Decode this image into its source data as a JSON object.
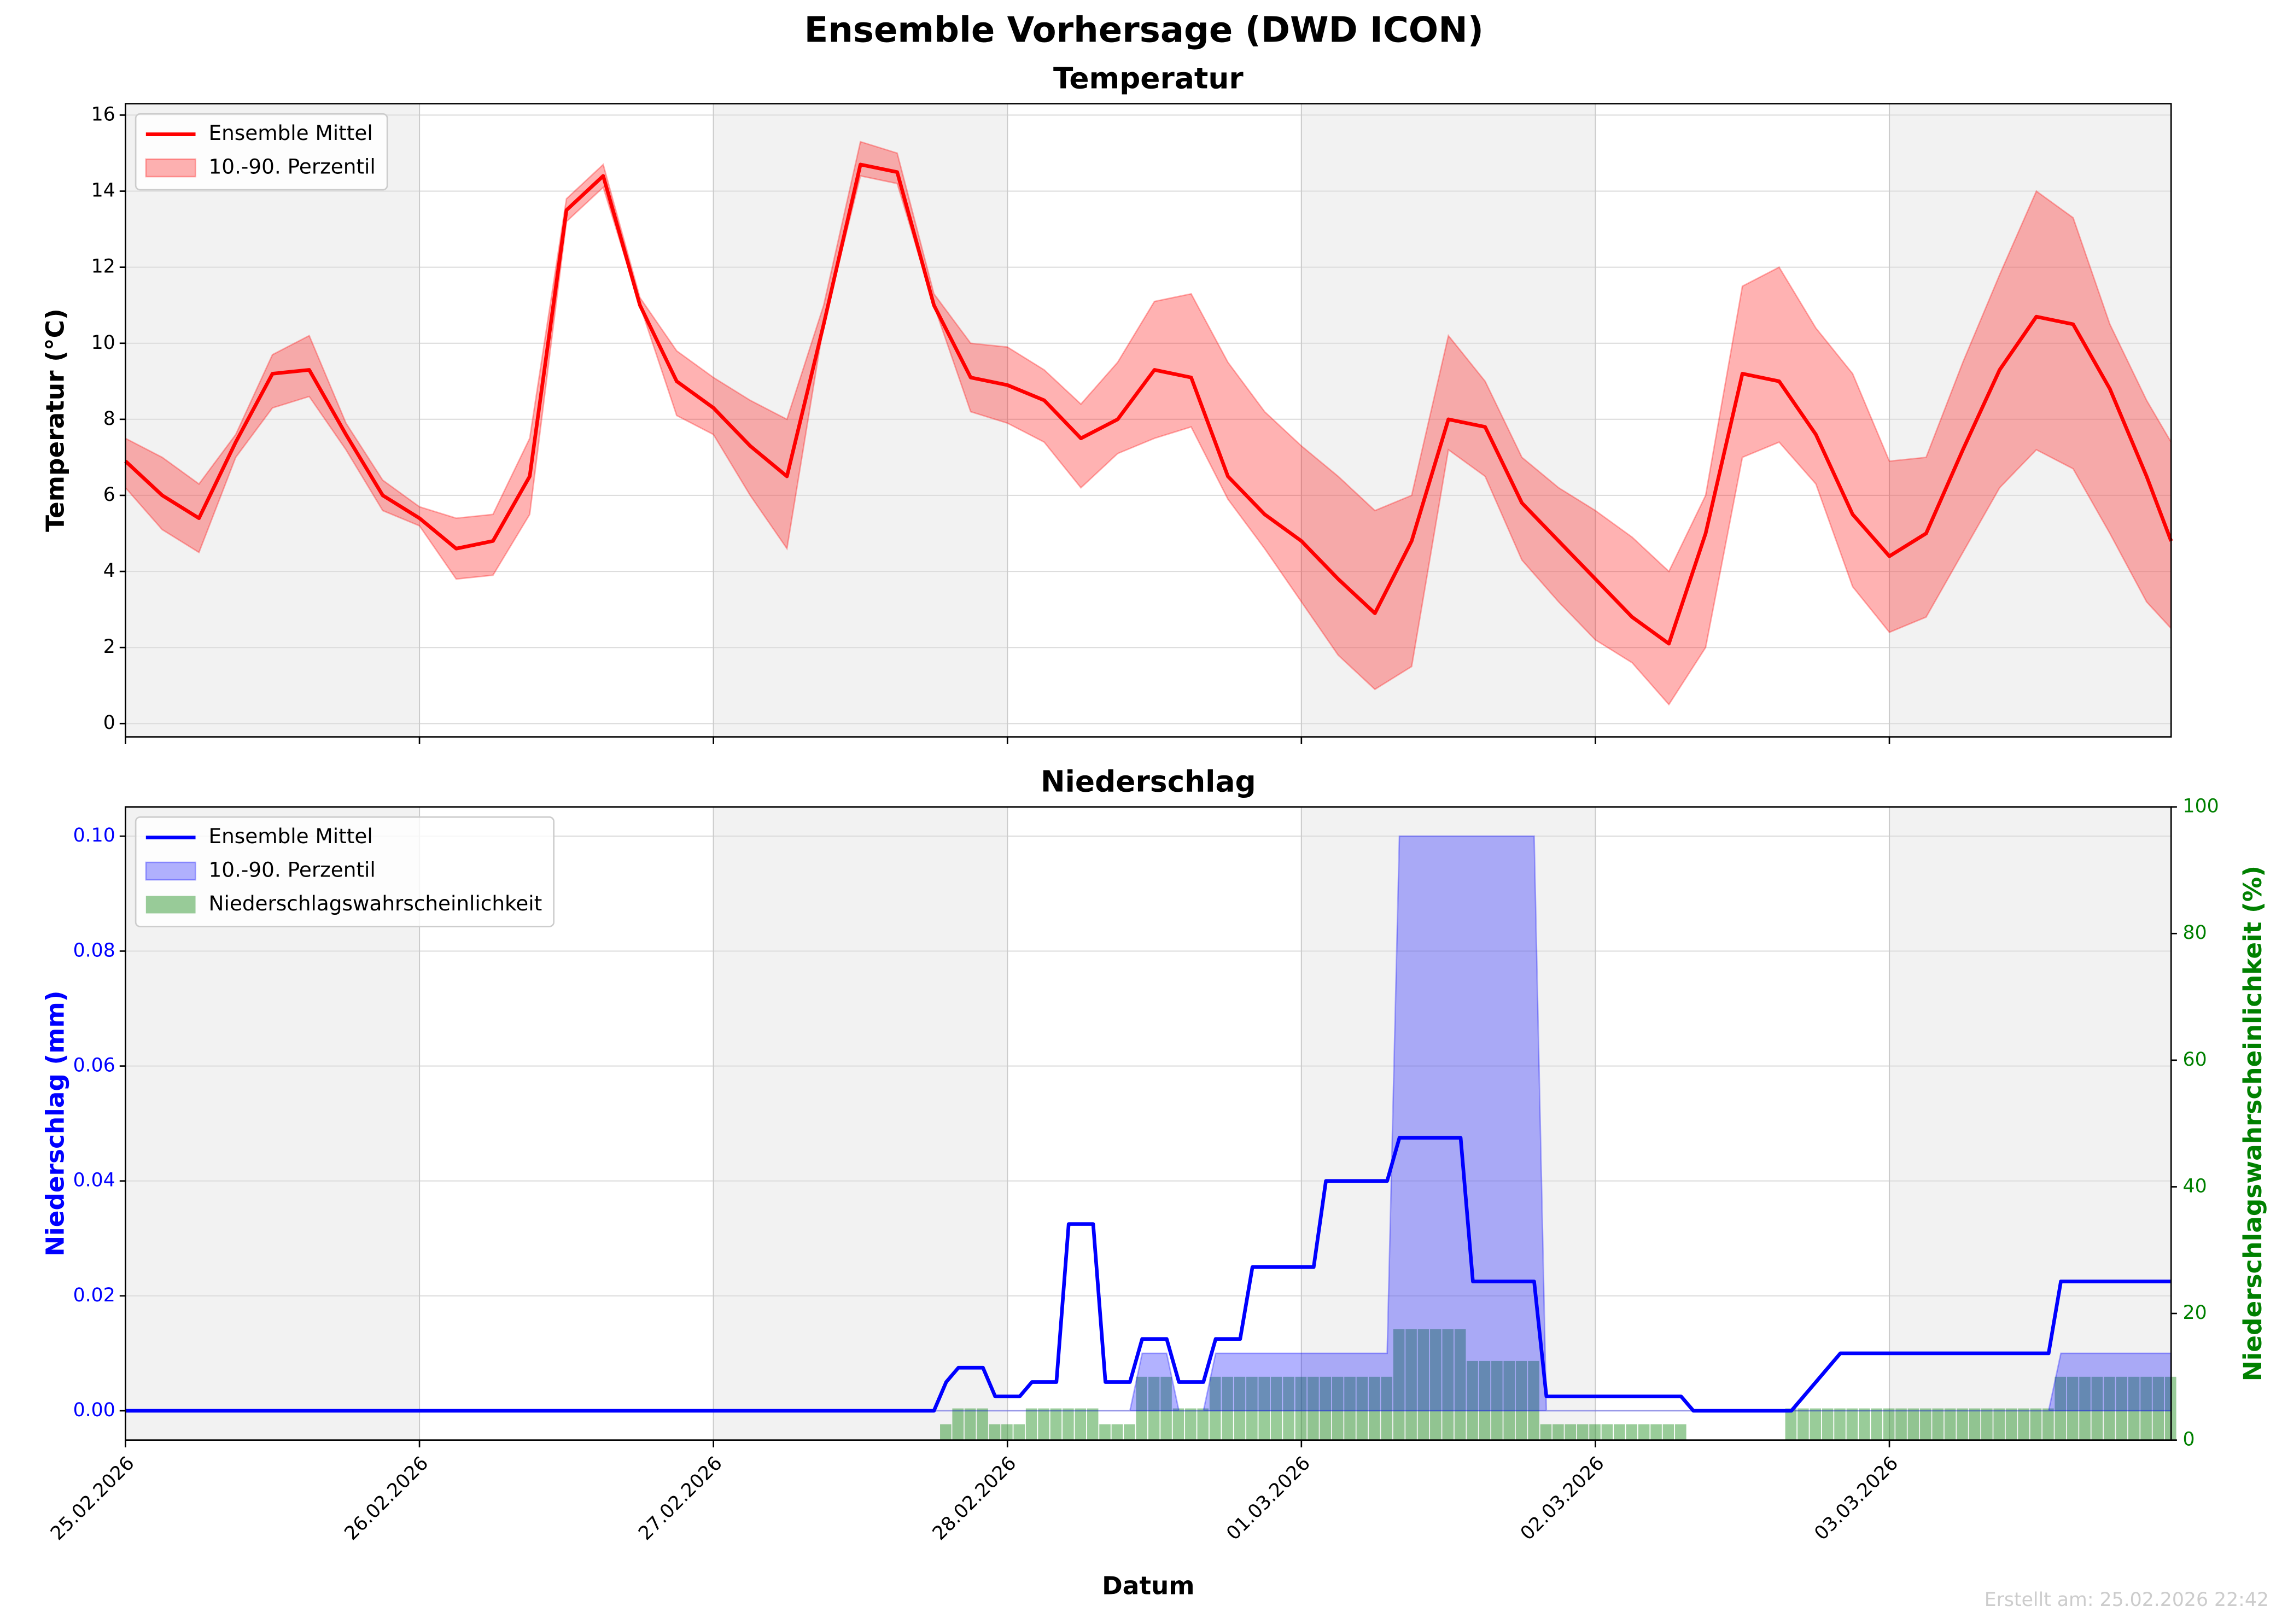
{
  "title": "Ensemble Vorhersage (DWD ICON)",
  "footnote": "Erstellt am: 25.02.2026 22:42",
  "chart_data": [
    {
      "type": "line",
      "title": "Temperatur",
      "ylabel": "Temperatur (°C)",
      "xlim": [
        0,
        167
      ],
      "ylim": [
        -0.35,
        16.3
      ],
      "yticks": [
        0,
        2,
        4,
        6,
        8,
        10,
        12,
        14,
        16
      ],
      "grid": true,
      "legend": "upper left",
      "x": [
        0,
        3,
        6,
        9,
        12,
        15,
        18,
        21,
        24,
        27,
        30,
        33,
        36,
        39,
        42,
        45,
        48,
        51,
        54,
        57,
        60,
        63,
        66,
        69,
        72,
        75,
        78,
        81,
        84,
        87,
        90,
        93,
        96,
        99,
        102,
        105,
        108,
        111,
        114,
        117,
        120,
        123,
        126,
        129,
        132,
        135,
        138,
        141,
        144,
        147,
        150,
        153,
        156,
        159,
        162,
        165,
        167
      ],
      "series": [
        {
          "name": "Ensemble Mittel",
          "color": "#ff0000",
          "values": [
            6.9,
            6.0,
            5.4,
            7.4,
            9.2,
            9.3,
            7.6,
            6.0,
            5.4,
            4.6,
            4.8,
            6.5,
            13.5,
            14.4,
            11.0,
            9.0,
            8.3,
            7.3,
            6.5,
            10.5,
            14.7,
            14.5,
            11.0,
            9.1,
            8.9,
            8.5,
            7.5,
            8.0,
            9.3,
            9.1,
            6.5,
            5.5,
            4.8,
            3.8,
            2.9,
            4.8,
            8.0,
            7.8,
            5.8,
            4.8,
            3.8,
            2.8,
            2.1,
            5.0,
            9.2,
            9.0,
            7.6,
            5.5,
            4.4,
            5.0,
            7.2,
            9.3,
            10.7,
            10.5,
            8.8,
            6.5,
            4.8
          ]
        }
      ],
      "band": {
        "name": "10.-90. Perzentil",
        "color": "#ff0000",
        "lower": [
          6.2,
          5.1,
          4.5,
          7.0,
          8.3,
          8.6,
          7.2,
          5.6,
          5.2,
          3.8,
          3.9,
          5.5,
          13.2,
          14.1,
          11.0,
          8.1,
          7.6,
          6.0,
          4.6,
          10.5,
          14.4,
          14.2,
          11.0,
          8.2,
          7.9,
          7.4,
          6.2,
          7.1,
          7.5,
          7.8,
          5.9,
          4.6,
          3.2,
          1.8,
          0.9,
          1.5,
          7.2,
          6.5,
          4.3,
          3.2,
          2.2,
          1.6,
          0.5,
          2.0,
          7.0,
          7.4,
          6.3,
          3.6,
          2.4,
          2.8,
          4.5,
          6.2,
          7.2,
          6.7,
          5.0,
          3.2,
          2.5
        ],
        "upper": [
          7.5,
          7.0,
          6.3,
          7.6,
          9.7,
          10.2,
          7.9,
          6.4,
          5.7,
          5.4,
          5.5,
          7.5,
          13.8,
          14.7,
          11.2,
          9.8,
          9.1,
          8.5,
          8.0,
          11.0,
          15.3,
          15.0,
          11.3,
          10.0,
          9.9,
          9.3,
          8.4,
          9.5,
          11.1,
          11.3,
          9.5,
          8.2,
          7.3,
          6.5,
          5.6,
          6.0,
          10.2,
          9.0,
          7.0,
          6.2,
          5.6,
          4.9,
          4.0,
          6.0,
          11.5,
          12.0,
          10.4,
          9.2,
          6.9,
          7.0,
          9.5,
          11.8,
          14.0,
          13.3,
          10.5,
          8.5,
          7.4
        ]
      }
    },
    {
      "type": "line",
      "title": "Niederschlag",
      "ylabel": "Niederschlag (mm)",
      "y2label": "Niederschlagswahrscheinlichkeit (%)",
      "xlabel": "Datum",
      "xlim": [
        0,
        167
      ],
      "xticks": [
        {
          "value": 0,
          "label": "25.02.2026"
        },
        {
          "value": 24,
          "label": "26.02.2026"
        },
        {
          "value": 48,
          "label": "27.02.2026"
        },
        {
          "value": 72,
          "label": "28.02.2026"
        },
        {
          "value": 96,
          "label": "01.03.2026"
        },
        {
          "value": 120,
          "label": "02.03.2026"
        },
        {
          "value": 144,
          "label": "03.03.2026"
        }
      ],
      "ylim": [
        -0.0051,
        0.1051
      ],
      "yticks": [
        {
          "value": 0,
          "label": "0.00"
        },
        {
          "value": 0.02,
          "label": "0.02"
        },
        {
          "value": 0.04,
          "label": "0.04"
        },
        {
          "value": 0.06,
          "label": "0.06"
        },
        {
          "value": 0.08,
          "label": "0.08"
        },
        {
          "value": 0.1,
          "label": "0.10"
        }
      ],
      "y2lim": [
        0,
        100
      ],
      "y2ticks": [
        0,
        20,
        40,
        60,
        80,
        100
      ],
      "grid": true,
      "legend": "upper left",
      "ycolor": "#0000ff",
      "y2color": "#008000",
      "x": [
        0,
        66,
        67,
        68,
        70,
        71,
        73,
        74,
        76,
        77,
        79,
        80,
        82,
        83,
        85,
        86,
        88,
        89,
        91,
        92,
        97,
        98,
        103,
        104,
        109,
        110,
        115,
        116,
        127,
        128,
        136,
        140,
        157,
        158,
        167
      ],
      "series": [
        {
          "name": "Ensemble Mittel",
          "color": "#0000ff",
          "values": [
            0,
            0,
            0.005,
            0.0075,
            0.0075,
            0.0025,
            0.0025,
            0.005,
            0.005,
            0.0325,
            0.0325,
            0.005,
            0.005,
            0.0125,
            0.0125,
            0.005,
            0.005,
            0.0125,
            0.0125,
            0.025,
            0.025,
            0.04,
            0.04,
            0.0475,
            0.0475,
            0.0225,
            0.0225,
            0.0025,
            0.0025,
            0,
            0,
            0.01,
            0.01,
            0.0225,
            0.0225
          ]
        },
        {
          "name": "Niederschlagswahrscheinlichkeit",
          "color": "#008000",
          "axis": "y2",
          "x": [
            67,
            68,
            69,
            70,
            71,
            72,
            73,
            74,
            75,
            76,
            77,
            78,
            79,
            80,
            81,
            82,
            83,
            84,
            85,
            86,
            87,
            88,
            89,
            90,
            91,
            92,
            93,
            94,
            95,
            96,
            97,
            98,
            99,
            100,
            101,
            102,
            103,
            104,
            105,
            106,
            107,
            108,
            109,
            110,
            111,
            112,
            113,
            114,
            115,
            116,
            117,
            118,
            119,
            120,
            121,
            122,
            123,
            124,
            125,
            126,
            127,
            128,
            129,
            130,
            131,
            132,
            133,
            134,
            135,
            136,
            137,
            138,
            139,
            140,
            141,
            142,
            143,
            144,
            145,
            146,
            147,
            148,
            149,
            150,
            151,
            152,
            153,
            154,
            155,
            156,
            157,
            158,
            159,
            160,
            161,
            162,
            163,
            164,
            165,
            166,
            167
          ],
          "values": [
            2.5,
            5,
            5,
            5,
            2.5,
            2.5,
            2.5,
            5,
            5,
            5,
            5,
            5,
            5,
            2.5,
            2.5,
            2.5,
            10,
            10,
            10,
            5,
            5,
            5,
            10,
            10,
            10,
            10,
            10,
            10,
            10,
            10,
            10,
            10,
            10,
            10,
            10,
            10,
            10,
            17.5,
            17.5,
            17.5,
            17.5,
            17.5,
            17.5,
            12.5,
            12.5,
            12.5,
            12.5,
            12.5,
            12.5,
            2.5,
            2.5,
            2.5,
            2.5,
            2.5,
            2.5,
            2.5,
            2.5,
            2.5,
            2.5,
            2.5,
            2.5,
            0,
            0,
            0,
            0,
            0,
            0,
            0,
            0,
            5,
            5,
            5,
            5,
            5,
            5,
            5,
            5,
            5,
            5,
            5,
            5,
            5,
            5,
            5,
            5,
            5,
            5,
            5,
            5,
            5,
            5,
            10,
            10,
            10,
            10,
            10,
            10,
            10,
            10,
            10,
            10
          ]
        }
      ],
      "band": {
        "name": "10.-90. Perzentil",
        "color": "#0000ff",
        "lower": [
          0,
          0,
          0,
          0,
          0,
          0,
          0,
          0,
          0,
          0,
          0,
          0,
          0,
          0,
          0,
          0,
          0,
          0,
          0,
          0,
          0,
          0,
          0,
          0,
          0,
          0,
          0,
          0,
          0,
          0,
          0,
          0,
          0,
          0,
          0
        ],
        "upper": [
          0,
          0,
          0,
          0,
          0,
          0,
          0,
          0,
          0,
          0,
          0,
          0,
          0,
          0.01,
          0.01,
          0,
          0,
          0.01,
          0.01,
          0.01,
          0.01,
          0.01,
          0.01,
          0.1,
          0.1,
          0.1,
          0.1,
          0,
          0,
          0,
          0,
          0,
          0,
          0.01,
          0.01
        ]
      }
    }
  ]
}
